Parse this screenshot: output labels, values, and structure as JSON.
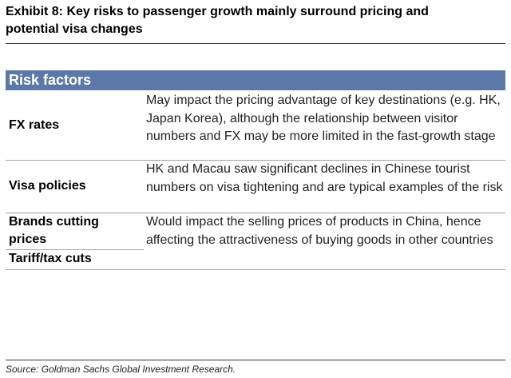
{
  "exhibit": {
    "title_line1": "Exhibit 8: Key risks to passenger growth mainly surround pricing and",
    "title_line2": "potential visa changes"
  },
  "table": {
    "header": "Risk factors",
    "rows": [
      {
        "factor": "FX rates",
        "description": "May impact the pricing advantage of key destinations (e.g. HK, Japan Korea), although the relationship between visitor numbers and FX may be more limited in the fast-growth stage"
      },
      {
        "factor": "Visa policies",
        "description": "HK and Macau saw significant declines in Chinese tourist numbers on visa tightening and are typical examples of the risk"
      },
      {
        "factor": "Brands cutting prices",
        "factor2": "Tariff/tax cuts",
        "description": "Would impact the selling prices of products in China, hence affecting the attractiveness of buying goods in other countries"
      }
    ]
  },
  "source": "Source: Goldman Sachs Global Investment Research."
}
